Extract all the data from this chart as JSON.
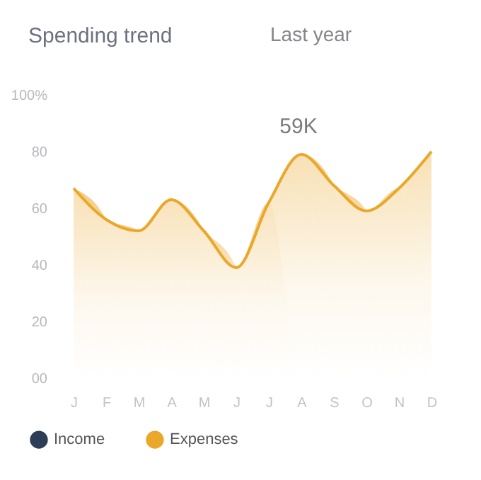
{
  "chart_data": {
    "type": "area",
    "title": "Spending trend",
    "subtitle": "Last year",
    "categories": [
      "J",
      "F",
      "M",
      "A",
      "M",
      "J",
      "J",
      "A",
      "S",
      "O",
      "N",
      "D"
    ],
    "series": [
      {
        "name": "Income",
        "color": "#2c3e55",
        "values": [
          null,
          null,
          null,
          null,
          null,
          null,
          null,
          null,
          null,
          null,
          null,
          null
        ]
      },
      {
        "name": "Expenses",
        "color": "#eaa72a",
        "values": [
          67,
          56,
          52,
          63,
          52,
          39,
          62,
          79,
          68,
          59,
          67,
          80
        ]
      }
    ],
    "ylim": [
      0,
      100
    ],
    "yticks": [
      {
        "value": 0,
        "label": "00"
      },
      20,
      40,
      60,
      80,
      {
        "value": 100,
        "label": "100%"
      }
    ],
    "annotations": [
      "59K"
    ],
    "grid": false,
    "legend": "bottom"
  }
}
